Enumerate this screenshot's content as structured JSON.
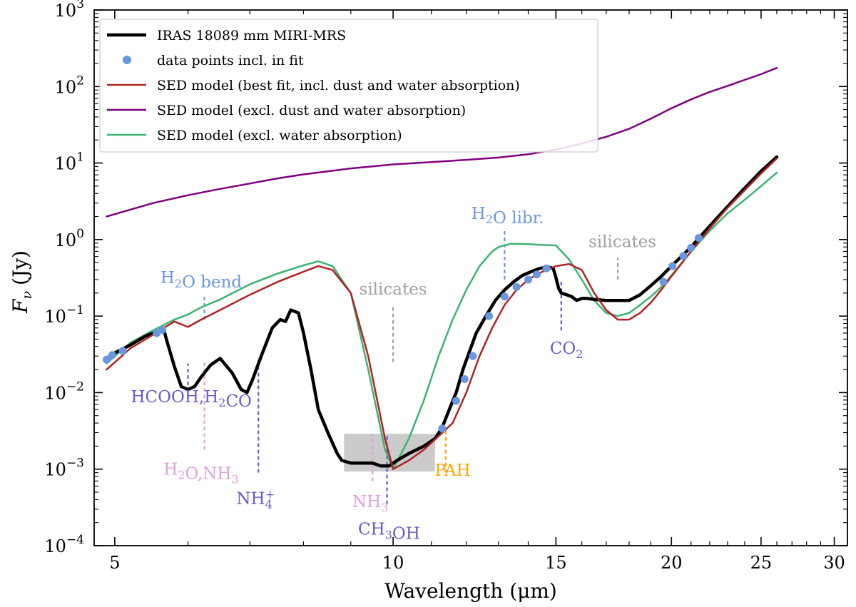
{
  "chart_data": {
    "type": "line",
    "xlabel": "Wavelength (μm)",
    "ylabel_main": "F",
    "ylabel_sub": "ν",
    "ylabel_unit": "(Jy)",
    "xscale": "log",
    "yscale": "log",
    "xlim": [
      4.75,
      31
    ],
    "ylim_exponent": [
      -4,
      3
    ],
    "x_ticks": [
      5,
      10,
      15,
      20,
      25,
      30
    ],
    "x_tick_labels": [
      "5",
      "10",
      "15",
      "20",
      "25",
      "30"
    ],
    "y_tick_exponents": [
      -4,
      -3,
      -2,
      -1,
      0,
      1,
      2,
      3
    ],
    "y_tick_labels": [
      "10",
      "10",
      "10",
      "10",
      "10",
      "10",
      "10",
      "10"
    ],
    "y_tick_label_exponents": [
      "−4",
      "−3",
      "−2",
      "−1",
      "0",
      "1",
      "2",
      "3"
    ],
    "legend_position": "top-left",
    "legend": [
      {
        "label": "IRAS 18089 mm MIRI-MRS",
        "style": "line",
        "color": "#000000"
      },
      {
        "label": "data points incl. in fit",
        "style": "marker",
        "color": "#6a96de"
      },
      {
        "label": "SED model (best fit, incl. dust and water absorption)",
        "style": "line",
        "color": "#b22222"
      },
      {
        "label": "SED model (excl. dust and water absorption)",
        "style": "line",
        "color": "#800080"
      },
      {
        "label": "SED model (excl. water absorption)",
        "style": "line",
        "color": "#3cb371"
      }
    ],
    "series": [
      {
        "name": "IRAS 18089 mm MIRI-MRS",
        "color": "#000000",
        "width": 4.5,
        "x": [
          4.9,
          5.0,
          5.2,
          5.4,
          5.55,
          5.65,
          5.7,
          5.8,
          5.9,
          6.0,
          6.1,
          6.2,
          6.35,
          6.5,
          6.7,
          6.85,
          6.95,
          7.05,
          7.2,
          7.4,
          7.55,
          7.65,
          7.75,
          7.9,
          8.0,
          8.15,
          8.3,
          8.5,
          8.7,
          8.8,
          9.0,
          9.2,
          9.5,
          9.7,
          9.9,
          10.1,
          10.4,
          10.8,
          11.1,
          11.3,
          11.5,
          11.7,
          11.9,
          12.1,
          12.3,
          12.6,
          12.9,
          13.2,
          13.5,
          13.8,
          14.1,
          14.4,
          14.7,
          14.9,
          15.0,
          15.1,
          15.2,
          15.4,
          15.6,
          15.8,
          16.0,
          16.2,
          16.5,
          17.0,
          17.5,
          18.0,
          18.5,
          19.0,
          19.5,
          20.0,
          21.0,
          22.0,
          23.0,
          24.0,
          25.0,
          26.0
        ],
        "y": [
          0.028,
          0.033,
          0.042,
          0.055,
          0.062,
          0.066,
          0.045,
          0.022,
          0.012,
          0.011,
          0.012,
          0.016,
          0.023,
          0.028,
          0.018,
          0.011,
          0.01,
          0.015,
          0.03,
          0.07,
          0.09,
          0.085,
          0.12,
          0.11,
          0.06,
          0.02,
          0.006,
          0.003,
          0.0016,
          0.0013,
          0.0012,
          0.0012,
          0.0012,
          0.0011,
          0.0011,
          0.0013,
          0.0016,
          0.002,
          0.0025,
          0.0035,
          0.006,
          0.01,
          0.02,
          0.035,
          0.06,
          0.1,
          0.16,
          0.22,
          0.28,
          0.34,
          0.38,
          0.42,
          0.44,
          0.42,
          0.32,
          0.23,
          0.2,
          0.19,
          0.18,
          0.16,
          0.17,
          0.17,
          0.165,
          0.16,
          0.16,
          0.16,
          0.19,
          0.25,
          0.33,
          0.45,
          0.8,
          1.5,
          2.7,
          4.7,
          7.8,
          12.0
        ]
      },
      {
        "name": "SED model (best fit, incl. dust and water absorption)",
        "color": "#b22222",
        "width": 2.5,
        "x": [
          4.9,
          5.2,
          5.5,
          5.8,
          6.0,
          6.2,
          6.5,
          7.0,
          7.5,
          8.0,
          8.3,
          8.6,
          9.0,
          9.4,
          9.8,
          10.0,
          10.4,
          10.8,
          11.2,
          11.6,
          12.0,
          12.4,
          12.8,
          13.2,
          13.6,
          14.0,
          14.5,
          15.0,
          15.5,
          16.0,
          16.5,
          17.0,
          17.5,
          18.0,
          18.5,
          19.0,
          19.5,
          20.0,
          21.0,
          22.0,
          23.0,
          24.0,
          25.0,
          26.0
        ],
        "y": [
          0.02,
          0.038,
          0.057,
          0.085,
          0.072,
          0.09,
          0.12,
          0.19,
          0.28,
          0.38,
          0.45,
          0.4,
          0.2,
          0.03,
          0.0025,
          0.001,
          0.0013,
          0.0018,
          0.0027,
          0.004,
          0.01,
          0.03,
          0.07,
          0.14,
          0.22,
          0.3,
          0.38,
          0.45,
          0.48,
          0.4,
          0.2,
          0.12,
          0.09,
          0.09,
          0.11,
          0.15,
          0.22,
          0.33,
          0.7,
          1.4,
          2.6,
          4.4,
          7.3,
          11.5
        ]
      },
      {
        "name": "SED model (excl. dust and water absorption)",
        "color": "#800080",
        "width": 2.5,
        "x": [
          4.9,
          5.5,
          6.0,
          6.5,
          7.0,
          7.5,
          8.0,
          9.0,
          10.0,
          11.0,
          12.0,
          13.0,
          14.0,
          15.0,
          16.0,
          17.0,
          18.0,
          19.0,
          20.0,
          21.0,
          22.0,
          23.0,
          24.0,
          25.0,
          26.0
        ],
        "y": [
          2.0,
          3.0,
          3.8,
          4.6,
          5.4,
          6.3,
          7.1,
          8.5,
          9.6,
          10.3,
          11.0,
          11.8,
          13.0,
          15.0,
          18.0,
          22.0,
          28.0,
          38.0,
          52.0,
          68.0,
          85.0,
          102.0,
          122.0,
          145.0,
          175.0
        ]
      },
      {
        "name": "SED model (excl. water absorption)",
        "color": "#3cb371",
        "width": 2.5,
        "x": [
          4.9,
          5.2,
          5.5,
          5.8,
          6.0,
          6.2,
          6.5,
          7.0,
          7.5,
          8.0,
          8.3,
          8.6,
          9.0,
          9.4,
          9.8,
          10.0,
          10.4,
          10.8,
          11.2,
          11.6,
          12.0,
          12.4,
          12.8,
          13.0,
          13.4,
          14.0,
          14.5,
          15.0,
          15.5,
          16.0,
          16.5,
          17.0,
          17.5,
          18.0,
          18.5,
          19.0,
          19.5,
          20.0,
          21.0,
          22.0,
          23.0,
          24.0,
          25.0,
          26.0
        ],
        "y": [
          0.024,
          0.045,
          0.065,
          0.09,
          0.105,
          0.13,
          0.165,
          0.26,
          0.36,
          0.46,
          0.52,
          0.45,
          0.2,
          0.02,
          0.0018,
          0.001,
          0.0025,
          0.008,
          0.03,
          0.09,
          0.22,
          0.45,
          0.7,
          0.8,
          0.88,
          0.87,
          0.85,
          0.84,
          0.55,
          0.3,
          0.16,
          0.11,
          0.1,
          0.11,
          0.14,
          0.18,
          0.24,
          0.34,
          0.7,
          1.3,
          2.2,
          3.3,
          5.0,
          7.5
        ]
      }
    ],
    "fit_points": {
      "name": "data points incl. in fit",
      "color": "#6a96de",
      "x": [
        4.9,
        4.97,
        5.1,
        5.55,
        5.63,
        11.3,
        11.7,
        11.95,
        12.2,
        12.7,
        13.2,
        13.6,
        14.0,
        14.3,
        14.65,
        19.6,
        20.05,
        20.6,
        21.0,
        21.4
      ],
      "y": [
        0.027,
        0.031,
        0.035,
        0.06,
        0.066,
        0.0034,
        0.0078,
        0.015,
        0.03,
        0.1,
        0.18,
        0.24,
        0.3,
        0.35,
        0.42,
        0.28,
        0.45,
        0.61,
        0.78,
        1.05
      ]
    },
    "shaded_region": {
      "x": [
        8.85,
        11.1
      ],
      "y": [
        0.00093,
        0.0029
      ],
      "color": "#a0a0a0"
    },
    "annotations": [
      {
        "text": "H₂O bend",
        "color": "#6a96de",
        "text_x": 6.2,
        "text_y": 0.27,
        "line_x": 6.25,
        "line_y": [
          0.09,
          0.19
        ]
      },
      {
        "text": "HCOOH,H₂CO",
        "color": "#6a5acd",
        "text_x": 6.05,
        "text_y": 0.0075,
        "line_x": 6.0,
        "line_y": [
          0.0085,
          0.024
        ]
      },
      {
        "text": "H₂O,NH₃",
        "color": "#dda0dd",
        "text_x": 6.2,
        "text_y": 0.00085,
        "line_x": 6.25,
        "line_y": [
          0.0018,
          0.026
        ]
      },
      {
        "text": "NH₄⁺",
        "color": "#6a5acd",
        "text_x": 7.1,
        "text_y": 0.00035,
        "line_x": 7.15,
        "line_y": [
          0.0009,
          0.028
        ]
      },
      {
        "text": "silicates",
        "color": "#a0a0a0",
        "text_x": 10.0,
        "text_y": 0.19,
        "line_x": 10.0,
        "line_y": [
          0.025,
          0.14
        ]
      },
      {
        "text": "NH₃",
        "color": "#dda0dd",
        "text_x": 9.45,
        "text_y": 0.00032,
        "line_x": 9.5,
        "line_y": [
          0.0007,
          0.0029
        ]
      },
      {
        "text": "CH₃OH",
        "color": "#6a5acd",
        "text_x": 9.9,
        "text_y": 0.00014,
        "line_x": 9.85,
        "line_y": [
          0.00035,
          0.0029
        ]
      },
      {
        "text": "PAH",
        "color": "#ffa500",
        "text_x": 11.6,
        "text_y": 0.00082,
        "line_x": 11.4,
        "line_y": [
          0.0009,
          0.0035
        ]
      },
      {
        "text": "H₂O libr.",
        "color": "#6a96de",
        "text_x": 13.3,
        "text_y": 1.85,
        "line_x": 13.2,
        "line_y": [
          0.3,
          1.3
        ]
      },
      {
        "text": "CO₂",
        "color": "#6a5acd",
        "text_x": 15.4,
        "text_y": 0.032,
        "line_x": 15.2,
        "line_y": [
          0.065,
          0.3
        ]
      },
      {
        "text": "silicates",
        "color": "#a0a0a0",
        "text_x": 17.7,
        "text_y": 0.8,
        "line_x": 17.5,
        "line_y": [
          0.3,
          0.58
        ]
      }
    ]
  }
}
